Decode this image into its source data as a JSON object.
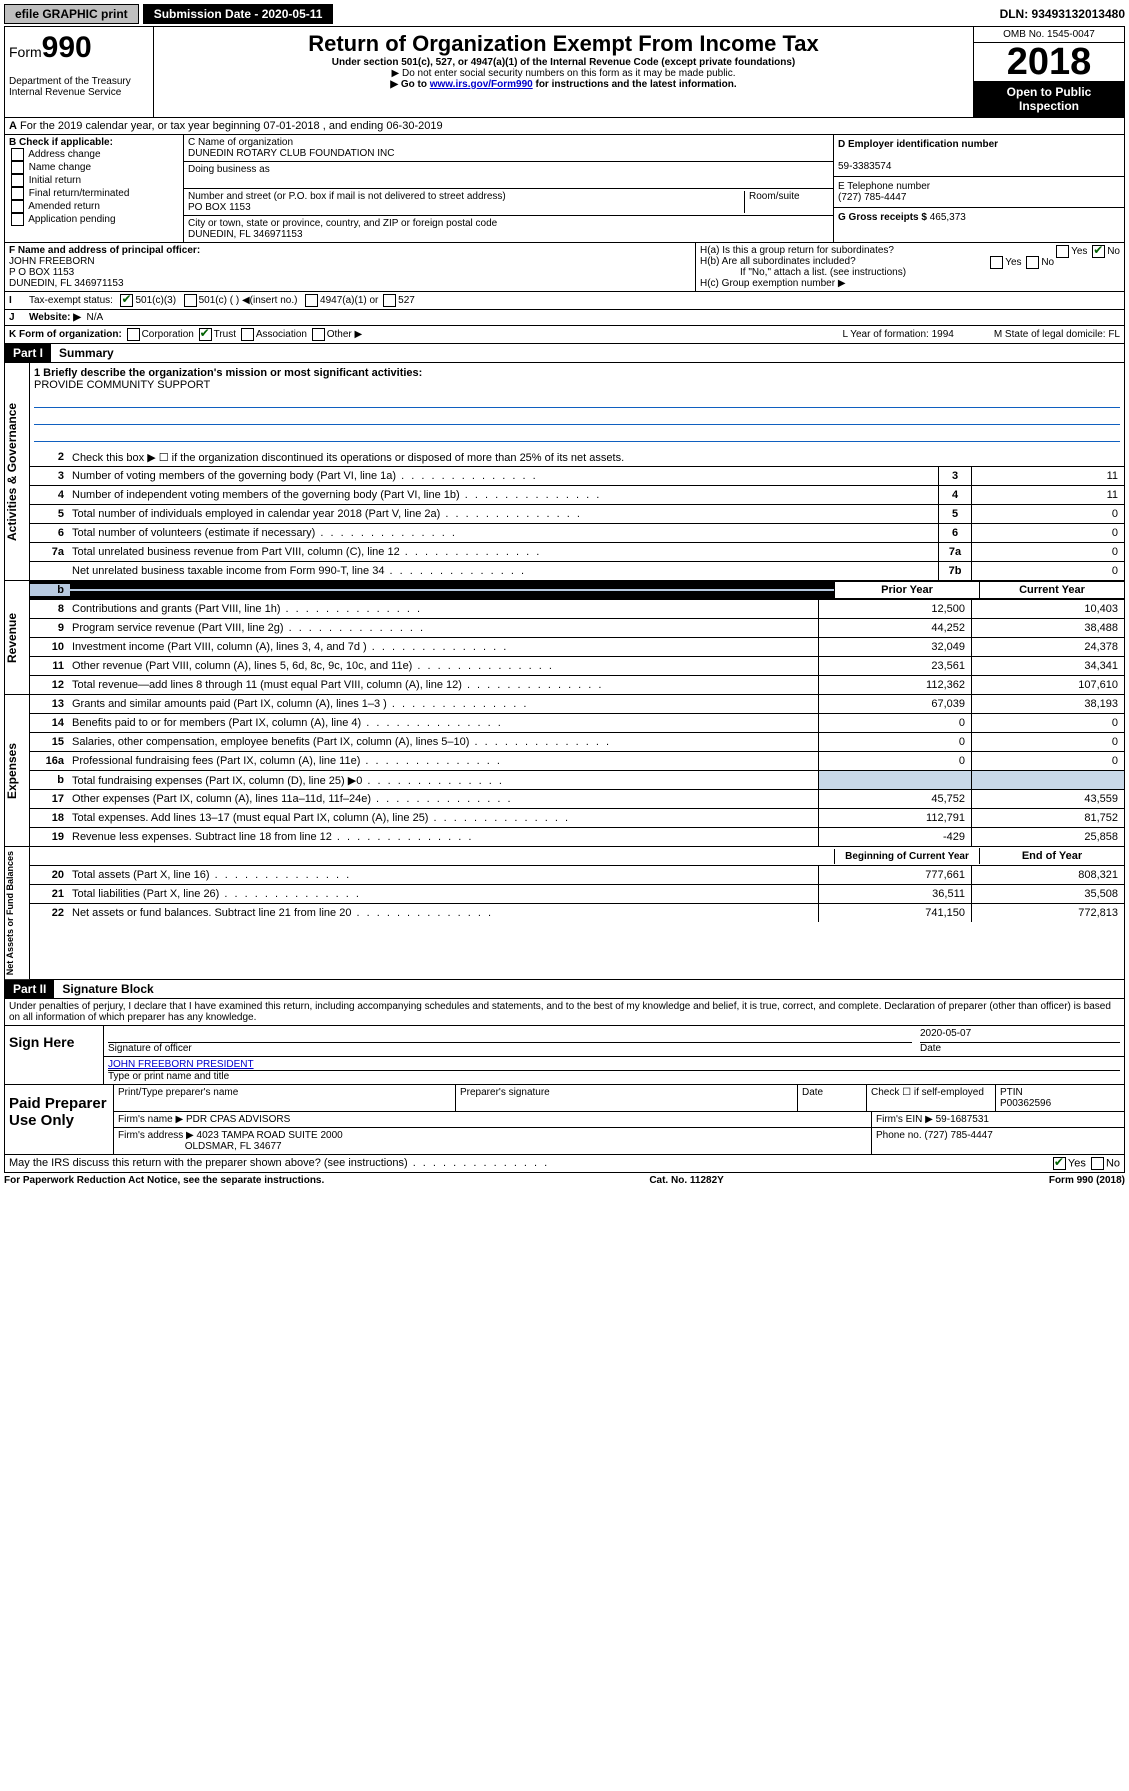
{
  "topbar": {
    "efile": "efile GRAPHIC print",
    "submission_label": "Submission Date - 2020-05-11",
    "dln": "DLN: 93493132013480"
  },
  "header": {
    "form_prefix": "Form",
    "form_number": "990",
    "dept": "Department of the Treasury",
    "irs": "Internal Revenue Service",
    "title": "Return of Organization Exempt From Income Tax",
    "subtitle": "Under section 501(c), 527, or 4947(a)(1) of the Internal Revenue Code (except private foundations)",
    "note1": "▶ Do not enter social security numbers on this form as it may be made public.",
    "note2_pre": "▶ Go to ",
    "note2_link": "www.irs.gov/Form990",
    "note2_post": " for instructions and the latest information.",
    "omb": "OMB No. 1545-0047",
    "year": "2018",
    "open_public": "Open to Public Inspection"
  },
  "row_a": "For the 2019 calendar year, or tax year beginning 07-01-2018    , and ending 06-30-2019",
  "section_b": {
    "label": "B Check if applicable:",
    "opts": [
      "Address change",
      "Name change",
      "Initial return",
      "Final return/terminated",
      "Amended return",
      "Application pending"
    ]
  },
  "section_c": {
    "name_label": "C Name of organization",
    "name": "DUNEDIN ROTARY CLUB FOUNDATION INC",
    "dba_label": "Doing business as",
    "addr_label": "Number and street (or P.O. box if mail is not delivered to street address)",
    "room_label": "Room/suite",
    "addr": "PO BOX 1153",
    "city_label": "City or town, state or province, country, and ZIP or foreign postal code",
    "city": "DUNEDIN, FL  346971153"
  },
  "section_d": {
    "label": "D Employer identification number",
    "value": "59-3383574"
  },
  "section_e": {
    "label": "E Telephone number",
    "value": "(727) 785-4447"
  },
  "section_g": {
    "label": "G Gross receipts $",
    "value": "465,373"
  },
  "section_f": {
    "label": "F Name and address of principal officer:",
    "name": "JOHN FREEBORN",
    "addr1": "P O BOX 1153",
    "addr2": "DUNEDIN, FL  346971153"
  },
  "section_h": {
    "ha": "H(a)  Is this a group return for subordinates?",
    "hb": "H(b)  Are all subordinates included?",
    "hb_note": "If \"No,\" attach a list. (see instructions)",
    "hc": "H(c)  Group exemption number ▶"
  },
  "row_i": {
    "label": "Tax-exempt status:",
    "opt1": "501(c)(3)",
    "opt2": "501(c) (  ) ◀(insert no.)",
    "opt3": "4947(a)(1) or",
    "opt4": "527"
  },
  "row_j": {
    "label": "Website: ▶",
    "value": "N/A"
  },
  "row_k": {
    "label": "K Form of organization:",
    "opts": [
      "Corporation",
      "Trust",
      "Association",
      "Other ▶"
    ],
    "l": "L Year of formation: 1994",
    "m": "M State of legal domicile: FL"
  },
  "part1": {
    "header": "Part I",
    "title": "Summary",
    "mission_label": "1  Briefly describe the organization's mission or most significant activities:",
    "mission": "PROVIDE COMMUNITY SUPPORT",
    "line2": "Check this box ▶ ☐  if the organization discontinued its operations or disposed of more than 25% of its net assets.",
    "gov_lines": [
      {
        "num": "3",
        "desc": "Number of voting members of the governing body (Part VI, line 1a)",
        "box": "3",
        "val": "11"
      },
      {
        "num": "4",
        "desc": "Number of independent voting members of the governing body (Part VI, line 1b)",
        "box": "4",
        "val": "11"
      },
      {
        "num": "5",
        "desc": "Total number of individuals employed in calendar year 2018 (Part V, line 2a)",
        "box": "5",
        "val": "0"
      },
      {
        "num": "6",
        "desc": "Total number of volunteers (estimate if necessary)",
        "box": "6",
        "val": "0"
      },
      {
        "num": "7a",
        "desc": "Total unrelated business revenue from Part VIII, column (C), line 12",
        "box": "7a",
        "val": "0"
      },
      {
        "num": "",
        "desc": "Net unrelated business taxable income from Form 990-T, line 34",
        "box": "7b",
        "val": "0"
      }
    ],
    "prior_header": "Prior Year",
    "current_header": "Current Year",
    "revenue_lines": [
      {
        "num": "8",
        "desc": "Contributions and grants (Part VIII, line 1h)",
        "prior": "12,500",
        "curr": "10,403"
      },
      {
        "num": "9",
        "desc": "Program service revenue (Part VIII, line 2g)",
        "prior": "44,252",
        "curr": "38,488"
      },
      {
        "num": "10",
        "desc": "Investment income (Part VIII, column (A), lines 3, 4, and 7d )",
        "prior": "32,049",
        "curr": "24,378"
      },
      {
        "num": "11",
        "desc": "Other revenue (Part VIII, column (A), lines 5, 6d, 8c, 9c, 10c, and 11e)",
        "prior": "23,561",
        "curr": "34,341"
      },
      {
        "num": "12",
        "desc": "Total revenue—add lines 8 through 11 (must equal Part VIII, column (A), line 12)",
        "prior": "112,362",
        "curr": "107,610"
      }
    ],
    "expense_lines": [
      {
        "num": "13",
        "desc": "Grants and similar amounts paid (Part IX, column (A), lines 1–3 )",
        "prior": "67,039",
        "curr": "38,193"
      },
      {
        "num": "14",
        "desc": "Benefits paid to or for members (Part IX, column (A), line 4)",
        "prior": "0",
        "curr": "0"
      },
      {
        "num": "15",
        "desc": "Salaries, other compensation, employee benefits (Part IX, column (A), lines 5–10)",
        "prior": "0",
        "curr": "0"
      },
      {
        "num": "16a",
        "desc": "Professional fundraising fees (Part IX, column (A), line 11e)",
        "prior": "0",
        "curr": "0"
      },
      {
        "num": "b",
        "desc": "Total fundraising expenses (Part IX, column (D), line 25) ▶0",
        "prior": "",
        "curr": "",
        "gray": true
      },
      {
        "num": "17",
        "desc": "Other expenses (Part IX, column (A), lines 11a–11d, 11f–24e)",
        "prior": "45,752",
        "curr": "43,559"
      },
      {
        "num": "18",
        "desc": "Total expenses. Add lines 13–17 (must equal Part IX, column (A), line 25)",
        "prior": "112,791",
        "curr": "81,752"
      },
      {
        "num": "19",
        "desc": "Revenue less expenses. Subtract line 18 from line 12",
        "prior": "-429",
        "curr": "25,858"
      }
    ],
    "begin_header": "Beginning of Current Year",
    "end_header": "End of Year",
    "asset_lines": [
      {
        "num": "20",
        "desc": "Total assets (Part X, line 16)",
        "prior": "777,661",
        "curr": "808,321"
      },
      {
        "num": "21",
        "desc": "Total liabilities (Part X, line 26)",
        "prior": "36,511",
        "curr": "35,508"
      },
      {
        "num": "22",
        "desc": "Net assets or fund balances. Subtract line 21 from line 20",
        "prior": "741,150",
        "curr": "772,813"
      }
    ],
    "side_labels": {
      "gov": "Activities & Governance",
      "rev": "Revenue",
      "exp": "Expenses",
      "net": "Net Assets or Fund Balances"
    }
  },
  "part2": {
    "header": "Part II",
    "title": "Signature Block",
    "perjury": "Under penalties of perjury, I declare that I have examined this return, including accompanying schedules and statements, and to the best of my knowledge and belief, it is true, correct, and complete. Declaration of preparer (other than officer) is based on all information of which preparer has any knowledge.",
    "sign_here": "Sign Here",
    "sig_officer": "Signature of officer",
    "sig_date": "2020-05-07",
    "date_label": "Date",
    "officer_name": "JOHN FREEBORN  PRESIDENT",
    "type_name": "Type or print name and title",
    "paid": "Paid Preparer Use Only",
    "prep_name_label": "Print/Type preparer's name",
    "prep_sig_label": "Preparer's signature",
    "check_label": "Check ☐ if self-employed",
    "ptin_label": "PTIN",
    "ptin": "P00362596",
    "firm_name_label": "Firm's name    ▶",
    "firm_name": "PDR CPAS ADVISORS",
    "firm_ein_label": "Firm's EIN ▶",
    "firm_ein": "59-1687531",
    "firm_addr_label": "Firm's address ▶",
    "firm_addr": "4023 TAMPA ROAD SUITE 2000",
    "firm_city": "OLDSMAR, FL  34677",
    "phone_label": "Phone no.",
    "phone": "(727) 785-4447",
    "discuss": "May the IRS discuss this return with the preparer shown above? (see instructions)"
  },
  "footer": {
    "left": "For Paperwork Reduction Act Notice, see the separate instructions.",
    "mid": "Cat. No. 11282Y",
    "right": "Form 990 (2018)"
  }
}
